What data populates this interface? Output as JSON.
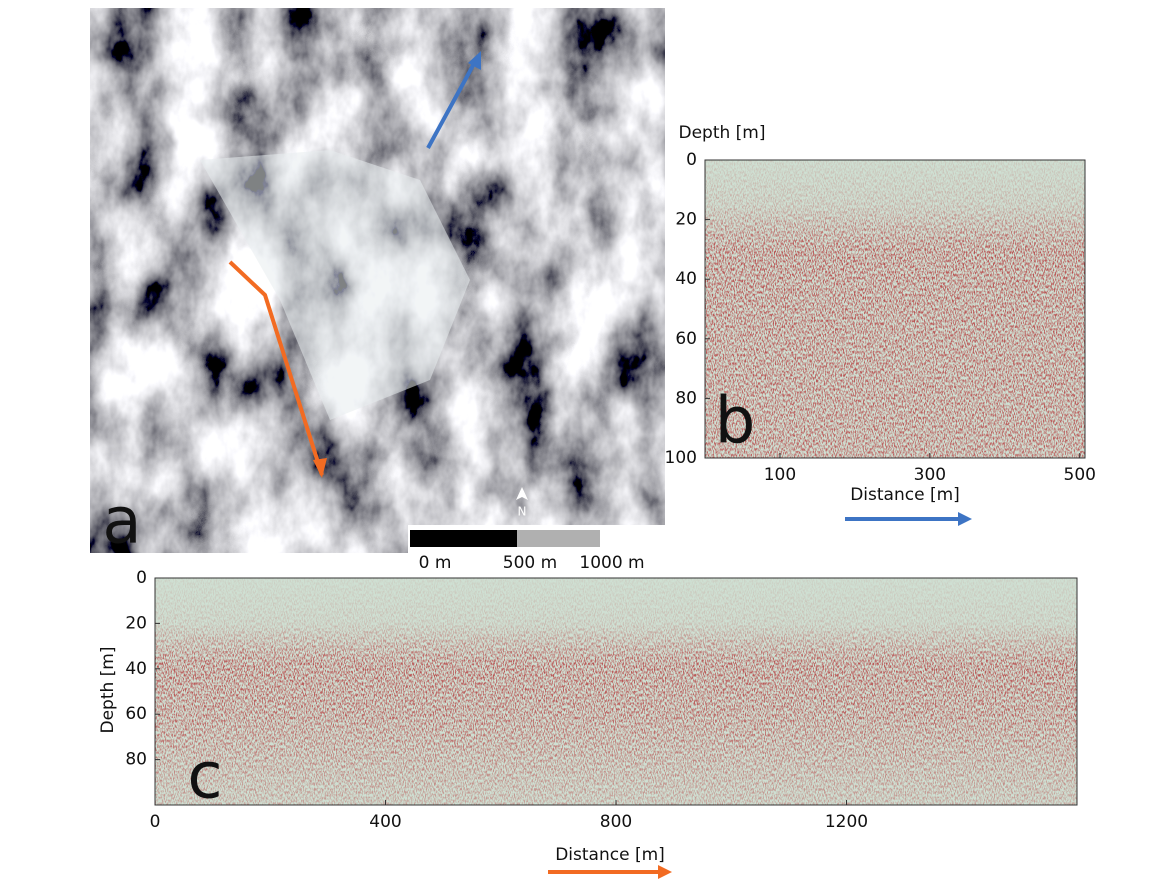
{
  "panel_labels": [
    "a",
    "b",
    "c"
  ],
  "map": {
    "north": "N",
    "scale_labels": [
      "0 m",
      "500 m",
      "1000 m"
    ]
  },
  "chart_data": [
    {
      "type": "radargram",
      "ylabel": "Depth [m]",
      "xlabel": "Distance [m]",
      "xlim": [
        0,
        507
      ],
      "ylim": [
        100,
        0
      ],
      "xticks": [
        100,
        300,
        500
      ],
      "yticks": [
        0,
        20,
        40,
        60,
        80,
        100
      ]
    },
    {
      "type": "radargram",
      "ylabel": "Depth [m]",
      "xlabel": "Distance [m]",
      "xlim": [
        0,
        1600
      ],
      "ylim": [
        100,
        0
      ],
      "xticks": [
        0,
        400,
        800,
        1200
      ],
      "yticks": [
        0,
        20,
        40,
        60,
        80
      ]
    }
  ]
}
